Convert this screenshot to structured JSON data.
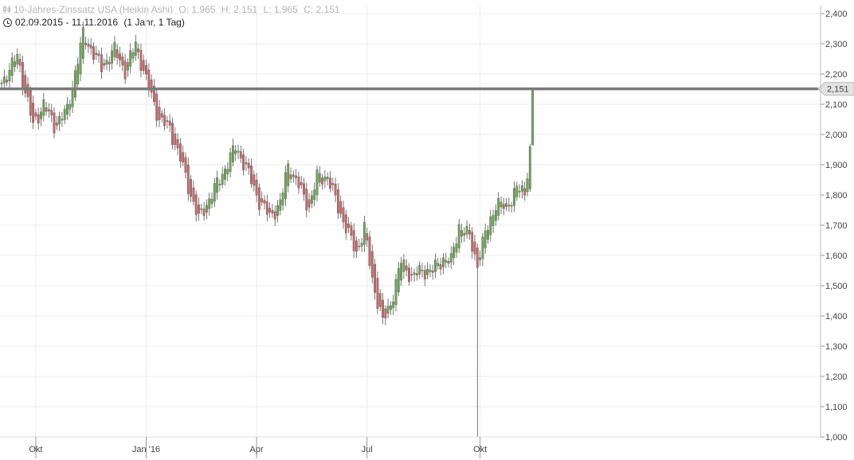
{
  "header": {
    "title": "10-Jahres-Zinssatz USA (Heikin Ashi)",
    "open": "O: 1,965",
    "high": "H: 2,151",
    "low": "L: 1,965",
    "close": "C: 2,151",
    "range": "02.09.2015 - 11.11.2016",
    "period": "(1 Jahr, 1 Tag)"
  },
  "chart_data": {
    "type": "candlestick",
    "style": "Heikin Ashi",
    "x_range": [
      "2015-09-02",
      "2016-11-11"
    ],
    "x_tick_labels": [
      "Okt",
      "Jan '16",
      "Apr",
      "Jul",
      "Okt"
    ],
    "y_tick_labels": [
      "2,400",
      "2,300",
      "2,200",
      "2,100",
      "2,000",
      "1,900",
      "1,800",
      "1,700",
      "1,600",
      "1,500",
      "1,400",
      "1,300",
      "1,200",
      "1,100",
      "1,000"
    ],
    "ylim": [
      1.0,
      2.4
    ],
    "grid": true,
    "last_value": 2.151,
    "last_value_label": "2,151",
    "up_color": "#6aa84f",
    "down_color": "#cc6666",
    "line_color": "#7a7a7a",
    "anchors": [
      [
        0,
        2.17
      ],
      [
        6,
        2.26
      ],
      [
        8,
        2.18
      ],
      [
        12,
        2.03
      ],
      [
        16,
        2.1
      ],
      [
        20,
        2.03
      ],
      [
        25,
        2.08
      ],
      [
        31,
        2.33
      ],
      [
        38,
        2.22
      ],
      [
        43,
        2.28
      ],
      [
        47,
        2.21
      ],
      [
        51,
        2.3
      ],
      [
        55,
        2.18
      ],
      [
        60,
        2.05
      ],
      [
        64,
        2.02
      ],
      [
        68,
        1.92
      ],
      [
        72,
        1.8
      ],
      [
        75,
        1.72
      ],
      [
        78,
        1.77
      ],
      [
        84,
        1.87
      ],
      [
        89,
        1.96
      ],
      [
        93,
        1.89
      ],
      [
        98,
        1.78
      ],
      [
        102,
        1.73
      ],
      [
        106,
        1.77
      ],
      [
        109,
        1.9
      ],
      [
        113,
        1.83
      ],
      [
        117,
        1.76
      ],
      [
        120,
        1.86
      ],
      [
        124,
        1.86
      ],
      [
        128,
        1.76
      ],
      [
        132,
        1.67
      ],
      [
        135,
        1.61
      ],
      [
        138,
        1.69
      ],
      [
        141,
        1.52
      ],
      [
        145,
        1.38
      ],
      [
        148,
        1.44
      ],
      [
        152,
        1.58
      ],
      [
        156,
        1.53
      ],
      [
        160,
        1.55
      ],
      [
        164,
        1.55
      ],
      [
        168,
        1.59
      ],
      [
        171,
        1.58
      ],
      [
        174,
        1.7
      ],
      [
        178,
        1.66
      ],
      [
        181,
        1.57
      ],
      [
        184,
        1.67
      ],
      [
        188,
        1.77
      ],
      [
        192,
        1.76
      ],
      [
        196,
        1.82
      ],
      [
        199,
        1.81
      ],
      [
        201,
        1.95
      ],
      [
        202,
        2.151
      ]
    ],
    "spike": {
      "index": 181,
      "low": 1.0
    }
  }
}
